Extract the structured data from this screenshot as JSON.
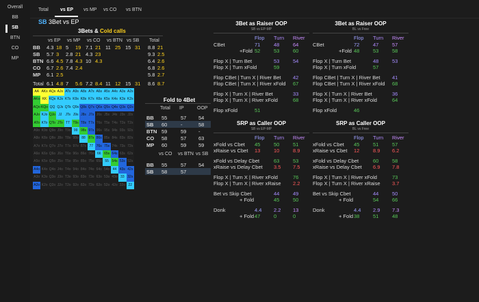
{
  "sidebar": {
    "header": "Overall",
    "items": [
      "BB",
      "SB",
      "BTN",
      "CO",
      "MP"
    ],
    "selected": "SB"
  },
  "tabs": [
    "Total",
    "vs EP",
    "vs MP",
    "vs CO",
    "vs BTN"
  ],
  "active_tab": "vs EP",
  "title": {
    "pos": "SB",
    "rest": "3Bet vs EP"
  },
  "threebets": {
    "header_a": "3Bets &",
    "header_b": "Cold calls",
    "columns": [
      "vs EP",
      "vs MP",
      "vs CO",
      "vs BTN",
      "vs SB"
    ],
    "total_label": "Total",
    "rows": [
      {
        "pos": "BB",
        "cls": "c-bb",
        "vals": [
          "4.3",
          "18",
          "5",
          "19",
          "7.1",
          "21",
          "11",
          "25",
          "15",
          "31"
        ],
        "tot": [
          "8.8",
          "21"
        ]
      },
      {
        "pos": "SB",
        "cls": "c-sb",
        "vals": [
          "5.7",
          "3",
          "2.8",
          "21",
          "4.3",
          "23",
          "",
          "",
          "",
          ""
        ],
        "tot": [
          "9.3",
          "2.5"
        ]
      },
      {
        "pos": "BTN",
        "cls": "c-btn",
        "vals": [
          "6.6",
          "4.5",
          "7.8",
          "4.3",
          "10",
          "4.3",
          "",
          "",
          "",
          ""
        ],
        "tot": [
          "6.4",
          "2.6"
        ]
      },
      {
        "pos": "CO",
        "cls": "c-co",
        "vals": [
          "6.7",
          "2.6",
          "7.4",
          "2.4",
          "",
          "",
          "",
          "",
          "",
          ""
        ],
        "tot": [
          "6.8",
          "2.6"
        ]
      },
      {
        "pos": "MP",
        "cls": "c-mp",
        "vals": [
          "6.1",
          "2.5",
          "",
          "",
          "",
          "",
          "",
          "",
          "",
          ""
        ],
        "tot": [
          "5.8",
          "2.7"
        ]
      }
    ],
    "total_row": {
      "label": "Total",
      "vals": [
        "6.1",
        "4.8",
        "7",
        "5.6",
        "7.2",
        "8.4",
        "11",
        "12",
        "15",
        "31"
      ],
      "tot": [
        "8.6",
        "8.7"
      ]
    }
  },
  "matrix": {
    "ranks": [
      "A",
      "K",
      "Q",
      "J",
      "T",
      "9",
      "8",
      "7",
      "6",
      "5",
      "4",
      "3",
      "2"
    ],
    "colors": [
      [
        "#ffff33",
        "#ffff33",
        "#ffff33",
        "#ffff33",
        "#33ccff",
        "#33ccff",
        "#33ccff",
        "#33ccff",
        "#33ccff",
        "#33ccff",
        "#33ccff",
        "#33ccff",
        "#33ccff"
      ],
      [
        "#33cc33",
        "#ffff33",
        "#33ccff",
        "#33ccff",
        "#33ccff",
        "#33ccff",
        "#33ccff",
        "#33ccff",
        "#33ccff",
        "#33ccff",
        "#33ccff",
        "#33ccff",
        "#33ccff"
      ],
      [
        "#33cc33",
        "#33cc33",
        "#33ccff",
        "#33ccff",
        "#33ccff",
        "#33ccff",
        "#2266dd",
        "#2266dd",
        "#2266dd",
        "#2266dd",
        "#2266dd",
        "#2266dd",
        "#2266dd"
      ],
      [
        "#33cc33",
        "#33ccff",
        "#33cc33",
        "#33ccff",
        "#33ccff",
        "#33ccff",
        "#2266dd",
        "#2266dd",
        "#1f1f1f",
        "#1f1f1f",
        "#1f1f1f",
        "#1f1f1f",
        "#1f1f1f"
      ],
      [
        "#33cc33",
        "#33ccff",
        "#33cc33",
        "#33cc33",
        "#33ccff",
        "#33cc33",
        "#2266dd",
        "#2266dd",
        "#1f1f1f",
        "#1f1f1f",
        "#1f1f1f",
        "#1f1f1f",
        "#1f1f1f"
      ],
      [
        "#1f1f1f",
        "#1f1f1f",
        "#1f1f1f",
        "#1f1f1f",
        "#1f1f1f",
        "#33ccff",
        "#33cc33",
        "#2266dd",
        "#1f1f1f",
        "#1f1f1f",
        "#1f1f1f",
        "#1f1f1f",
        "#1f1f1f"
      ],
      [
        "#1f1f1f",
        "#1f1f1f",
        "#1f1f1f",
        "#1f1f1f",
        "#1f1f1f",
        "#1f1f1f",
        "#33ccff",
        "#33cc33",
        "#2266dd",
        "#1f1f1f",
        "#1f1f1f",
        "#1f1f1f",
        "#1f1f1f"
      ],
      [
        "#1f1f1f",
        "#1f1f1f",
        "#1f1f1f",
        "#1f1f1f",
        "#1f1f1f",
        "#1f1f1f",
        "#1f1f1f",
        "#33ccff",
        "#2266dd",
        "#2266dd",
        "#1f1f1f",
        "#1f1f1f",
        "#1f1f1f"
      ],
      [
        "#1f1f1f",
        "#1f1f1f",
        "#1f1f1f",
        "#1f1f1f",
        "#1f1f1f",
        "#1f1f1f",
        "#1f1f1f",
        "#1f1f1f",
        "#33ccff",
        "#33cc33",
        "#2266dd",
        "#1f1f1f",
        "#1f1f1f"
      ],
      [
        "#1f1f1f",
        "#1f1f1f",
        "#1f1f1f",
        "#1f1f1f",
        "#1f1f1f",
        "#1f1f1f",
        "#1f1f1f",
        "#1f1f1f",
        "#1f1f1f",
        "#33ccff",
        "#33cc33",
        "#2266dd",
        "#1f1f1f"
      ],
      [
        "#2266dd",
        "#1f1f1f",
        "#1f1f1f",
        "#1f1f1f",
        "#1f1f1f",
        "#1f1f1f",
        "#1f1f1f",
        "#1f1f1f",
        "#1f1f1f",
        "#1f1f1f",
        "#33ccff",
        "#2266dd",
        "#2266dd"
      ],
      [
        "#1f1f1f",
        "#1f1f1f",
        "#1f1f1f",
        "#1f1f1f",
        "#1f1f1f",
        "#1f1f1f",
        "#1f1f1f",
        "#1f1f1f",
        "#1f1f1f",
        "#1f1f1f",
        "#1f1f1f",
        "#33ccff",
        "#2266dd"
      ],
      [
        "#2266dd",
        "#1f1f1f",
        "#1f1f1f",
        "#1f1f1f",
        "#1f1f1f",
        "#1f1f1f",
        "#1f1f1f",
        "#1f1f1f",
        "#1f1f1f",
        "#1f1f1f",
        "#1f1f1f",
        "#1f1f1f",
        "#33ccff"
      ]
    ]
  },
  "fold4bet": {
    "title": "Fold to 4Bet",
    "cols": [
      "Total",
      "IP",
      "OOP"
    ],
    "rows": [
      {
        "pos": "BB",
        "cls": "c-bb",
        "vals": [
          "55",
          "57",
          "54"
        ]
      },
      {
        "pos": "SB",
        "cls": "c-sb",
        "vals": [
          "60",
          "-",
          "58"
        ]
      },
      {
        "pos": "BTN",
        "cls": "c-btn",
        "vals": [
          "59",
          "59",
          "-"
        ]
      },
      {
        "pos": "CO",
        "cls": "c-co",
        "vals": [
          "58",
          "57",
          "63"
        ]
      },
      {
        "pos": "MP",
        "cls": "c-mp",
        "vals": [
          "60",
          "59",
          "59"
        ]
      }
    ],
    "cols2": [
      "vs CO",
      "vs BTN",
      "vs SB"
    ],
    "rows2": [
      {
        "pos": "BB",
        "cls": "c-bb",
        "vals": [
          "55",
          "57",
          "54"
        ]
      },
      {
        "pos": "SB",
        "cls": "c-sb",
        "vals": [
          "58",
          "57",
          ""
        ]
      }
    ]
  },
  "panels": [
    {
      "title": "3Bet as Raiser OOP",
      "sub": "SB vs EP-MP",
      "rows": [
        {
          "label": "CBet",
          "vals": [
            "71",
            "48",
            "64"
          ],
          "cls": [
            "c-flop",
            "c-turn",
            "c-river"
          ]
        },
        {
          "label": "+Fold",
          "indent": true,
          "vals": [
            "52",
            "53",
            "60"
          ],
          "cls": [
            "v-g",
            "v-g",
            "v-g"
          ]
        },
        {
          "label": "Flop X | Turn Bet",
          "vals": [
            "",
            "53",
            "54"
          ],
          "cls": [
            "",
            "v-p",
            "v-p"
          ],
          "gap": true
        },
        {
          "label": "Flop X | Turn xFold",
          "vals": [
            "",
            "59",
            ""
          ],
          "cls": [
            "",
            "v-g",
            ""
          ]
        },
        {
          "label": "Flop CBet | Turn X | River Bet",
          "vals": [
            "",
            "",
            "42"
          ],
          "cls": [
            "",
            "",
            "v-p"
          ],
          "gap": true
        },
        {
          "label": "Flop CBet | Turn X | River xFold",
          "vals": [
            "",
            "",
            "67"
          ],
          "cls": [
            "",
            "",
            "v-g"
          ]
        },
        {
          "label": "Flop X | Turn X | River Bet",
          "vals": [
            "",
            "",
            "33"
          ],
          "cls": [
            "",
            "",
            "v-p"
          ],
          "gap": true
        },
        {
          "label": "Flop X | Turn X | River xFold",
          "vals": [
            "",
            "",
            "68"
          ],
          "cls": [
            "",
            "",
            "v-g"
          ]
        },
        {
          "label": "Flop xFold",
          "vals": [
            "51",
            "",
            ""
          ],
          "cls": [
            "v-g",
            "",
            ""
          ],
          "gap": true
        }
      ]
    },
    {
      "title": "3Bet as Raiser OOP",
      "sub": "BL vs Free",
      "rows": [
        {
          "label": "CBet",
          "vals": [
            "72",
            "47",
            "57"
          ],
          "cls": [
            "c-flop",
            "c-turn",
            "c-river"
          ]
        },
        {
          "label": "+Fold",
          "indent": true,
          "vals": [
            "48",
            "53",
            "58"
          ],
          "cls": [
            "v-g",
            "v-g",
            "v-g"
          ]
        },
        {
          "label": "Flop X | Turn Bet",
          "vals": [
            "",
            "48",
            "53"
          ],
          "cls": [
            "",
            "v-p",
            "v-p"
          ],
          "gap": true
        },
        {
          "label": "Flop X | Turn xFold",
          "vals": [
            "",
            "57",
            ""
          ],
          "cls": [
            "",
            "v-g",
            ""
          ]
        },
        {
          "label": "Flop CBet | Turn X | River Bet",
          "vals": [
            "",
            "",
            "41"
          ],
          "cls": [
            "",
            "",
            "v-p"
          ],
          "gap": true
        },
        {
          "label": "Flop CBet | Turn X | River xFold",
          "vals": [
            "",
            "",
            "68"
          ],
          "cls": [
            "",
            "",
            "v-g"
          ]
        },
        {
          "label": "Flop X | Turn X | River Bet",
          "vals": [
            "",
            "",
            "36"
          ],
          "cls": [
            "",
            "",
            "v-p"
          ],
          "gap": true
        },
        {
          "label": "Flop X | Turn X | River xFold",
          "vals": [
            "",
            "",
            "64"
          ],
          "cls": [
            "",
            "",
            "v-g"
          ]
        },
        {
          "label": "Flop xFold",
          "vals": [
            "46",
            "",
            ""
          ],
          "cls": [
            "v-g",
            "",
            ""
          ],
          "gap": true
        }
      ]
    },
    {
      "title": "SRP as Caller OOP",
      "sub": "SB vs EP-MP",
      "rows": [
        {
          "label": "xFold vs Cbet",
          "vals": [
            "45",
            "50",
            "51"
          ],
          "cls": [
            "v-g",
            "v-g",
            "v-g"
          ]
        },
        {
          "label": "xRaise vs Cbet",
          "vals": [
            "13",
            "10",
            "8.9"
          ],
          "cls": [
            "v-r",
            "v-r",
            "v-r"
          ]
        },
        {
          "label": "xFold vs Delay Cbet",
          "vals": [
            "",
            "63",
            "53"
          ],
          "cls": [
            "",
            "v-g",
            "v-g"
          ],
          "gap": true
        },
        {
          "label": "xRaise vs Delay Cbet",
          "vals": [
            "",
            "3.5",
            "7.5"
          ],
          "cls": [
            "",
            "v-r",
            "v-r"
          ]
        },
        {
          "label": "Flop X | Turn X | River xFold",
          "vals": [
            "",
            "",
            "76"
          ],
          "cls": [
            "",
            "",
            "v-g"
          ],
          "gap": true
        },
        {
          "label": "Flop X | Turn X | River xRaise",
          "vals": [
            "",
            "",
            "2.2"
          ],
          "cls": [
            "",
            "",
            "v-r"
          ]
        },
        {
          "label": "Bet vs Skip Cbet",
          "vals": [
            "",
            "44",
            "49"
          ],
          "cls": [
            "",
            "v-p",
            "v-p"
          ],
          "gap": true
        },
        {
          "label": "+ Fold",
          "indent": true,
          "vals": [
            "",
            "45",
            "50"
          ],
          "cls": [
            "",
            "v-g",
            "v-g"
          ]
        },
        {
          "label": "Donk",
          "vals": [
            "4.4",
            "2.2",
            "13"
          ],
          "cls": [
            "c-flop",
            "c-turn",
            "c-river"
          ],
          "gap": true
        },
        {
          "label": "+ Fold",
          "indent": true,
          "vals": [
            "47",
            "0",
            "0"
          ],
          "cls": [
            "v-g",
            "v-g",
            "v-g"
          ]
        }
      ]
    },
    {
      "title": "SRP as Caller OOP",
      "sub": "BL vs Free",
      "rows": [
        {
          "label": "xFold vs Cbet",
          "vals": [
            "45",
            "51",
            "57"
          ],
          "cls": [
            "v-g",
            "v-g",
            "v-g"
          ]
        },
        {
          "label": "xRaise vs Cbet",
          "vals": [
            "12",
            "8.9",
            "6.2"
          ],
          "cls": [
            "v-r",
            "v-r",
            "v-r"
          ]
        },
        {
          "label": "xFold vs Delay Cbet",
          "vals": [
            "",
            "60",
            "58"
          ],
          "cls": [
            "",
            "v-g",
            "v-g"
          ],
          "gap": true
        },
        {
          "label": "xRaise vs Delay Cbet",
          "vals": [
            "",
            "6.9",
            "7.8"
          ],
          "cls": [
            "",
            "v-r",
            "v-r"
          ]
        },
        {
          "label": "Flop X | Turn X | River xFold",
          "vals": [
            "",
            "",
            "73"
          ],
          "cls": [
            "",
            "",
            "v-g"
          ],
          "gap": true
        },
        {
          "label": "Flop X | Turn X | River xRaise",
          "vals": [
            "",
            "",
            "3.7"
          ],
          "cls": [
            "",
            "",
            "v-r"
          ]
        },
        {
          "label": "Bet vs Skip Cbet",
          "vals": [
            "",
            "44",
            "50"
          ],
          "cls": [
            "",
            "v-p",
            "v-p"
          ],
          "gap": true
        },
        {
          "label": "+ Fold",
          "indent": true,
          "vals": [
            "",
            "54",
            "66"
          ],
          "cls": [
            "",
            "v-g",
            "v-g"
          ]
        },
        {
          "label": "Donk",
          "vals": [
            "4.4",
            "2.9",
            "7.3"
          ],
          "cls": [
            "c-flop",
            "c-turn",
            "c-river"
          ],
          "gap": true
        },
        {
          "label": "+ Fold",
          "indent": true,
          "vals": [
            "38",
            "51",
            "48"
          ],
          "cls": [
            "v-g",
            "v-g",
            "v-g"
          ]
        }
      ]
    }
  ],
  "streets": [
    "Flop",
    "Turn",
    "River"
  ]
}
